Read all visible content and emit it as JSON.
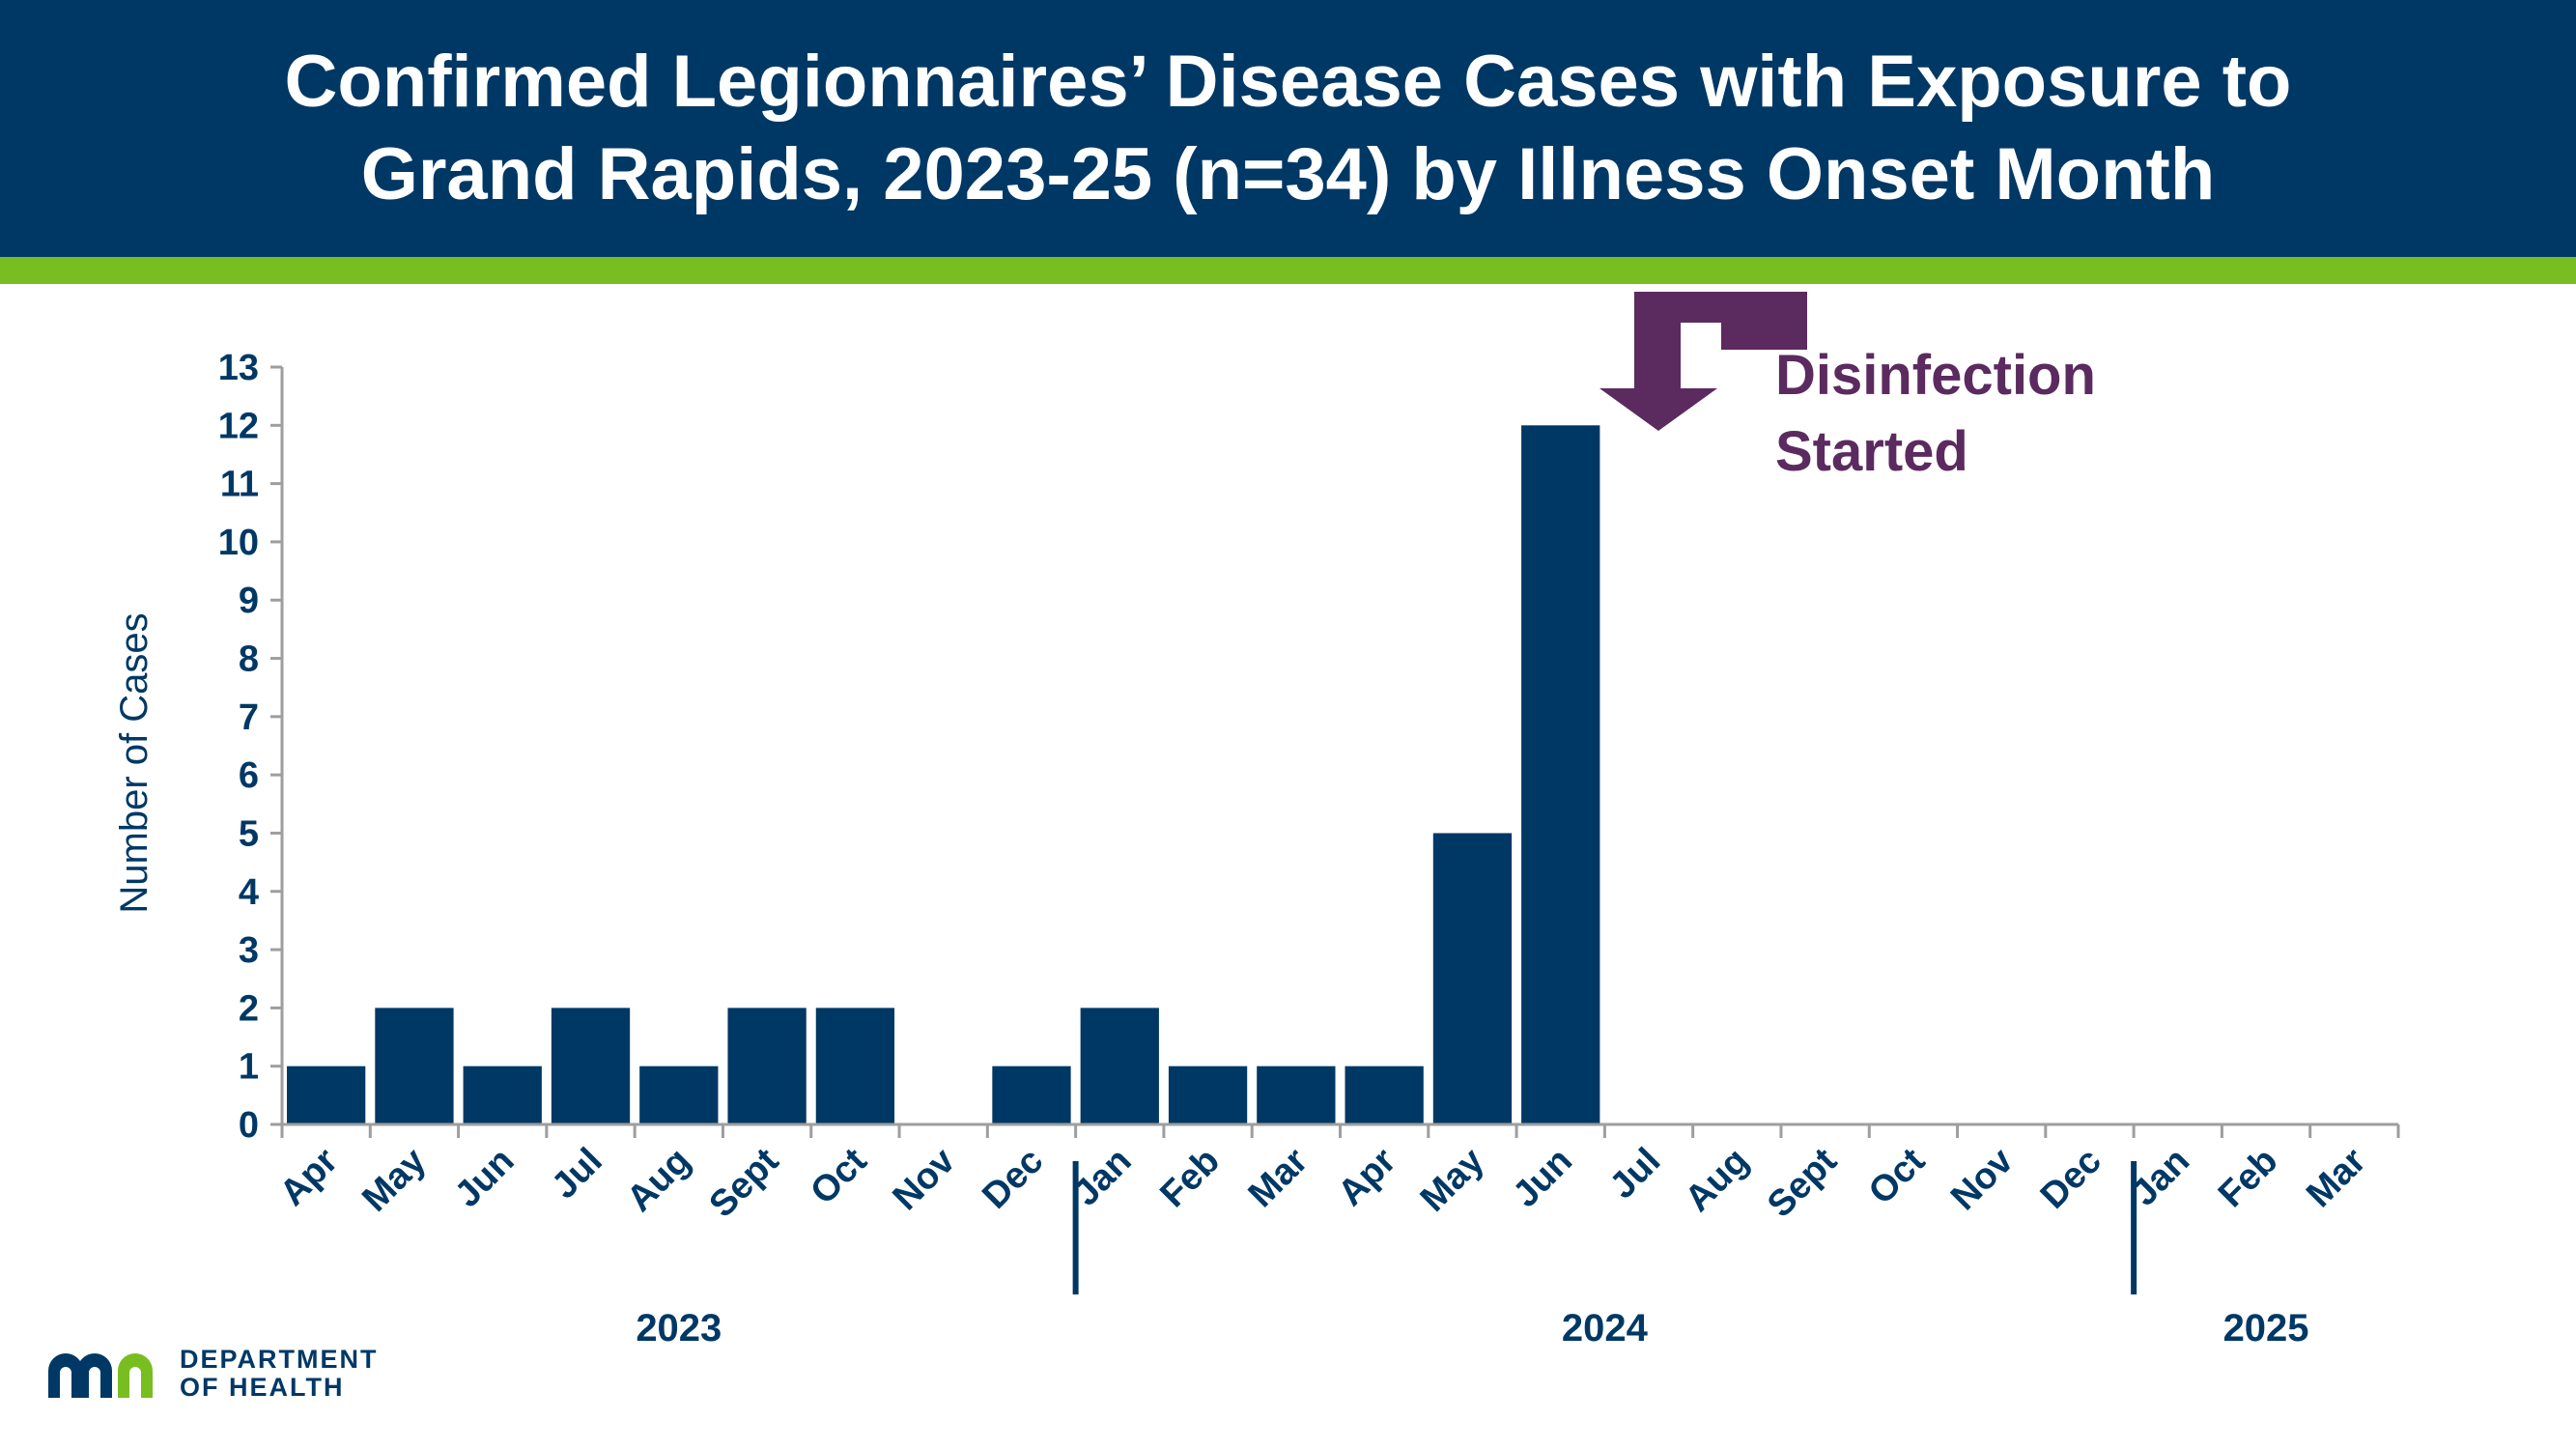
{
  "header": {
    "title_line1": "Confirmed Legionnaires’ Disease Cases with Exposure to",
    "title_line2": "Grand Rapids, 2023-25 (n=34) by Illness Onset Month"
  },
  "colors": {
    "header_bg": "#003865",
    "accent": "#78be20",
    "bar": "#003865",
    "annotation": "#5b2a5f"
  },
  "annotation": {
    "line1": "Disinfection",
    "line2": "Started",
    "icon": "bent-down-arrow-icon"
  },
  "logo": {
    "icon": "mn-logo-icon",
    "line1": "DEPARTMENT",
    "line2": "OF HEALTH"
  },
  "chart_data": {
    "type": "bar",
    "title": "Confirmed Legionnaires’ Disease Cases with Exposure to Grand Rapids, 2023-25 (n=34) by Illness Onset Month",
    "ylabel": "Number of Cases",
    "xlabel": "",
    "ylim": [
      0,
      13
    ],
    "yticks": [
      0,
      1,
      2,
      3,
      4,
      5,
      6,
      7,
      8,
      9,
      10,
      11,
      12,
      13
    ],
    "grid": false,
    "categories": [
      "Apr",
      "May",
      "Jun",
      "Jul",
      "Aug",
      "Sept",
      "Oct",
      "Nov",
      "Dec",
      "Jan",
      "Feb",
      "Mar",
      "Apr",
      "May",
      "Jun",
      "Jul",
      "Aug",
      "Sept",
      "Oct",
      "Nov",
      "Dec",
      "Jan",
      "Feb",
      "Mar"
    ],
    "values": [
      1,
      2,
      1,
      2,
      1,
      2,
      2,
      0,
      1,
      2,
      1,
      1,
      1,
      5,
      12,
      0,
      0,
      0,
      0,
      0,
      0,
      0,
      0,
      0
    ],
    "years": [
      {
        "label": "2023",
        "start_index": 0,
        "end_index": 8
      },
      {
        "label": "2024",
        "start_index": 9,
        "end_index": 20
      },
      {
        "label": "2025",
        "start_index": 21,
        "end_index": 23
      }
    ]
  }
}
